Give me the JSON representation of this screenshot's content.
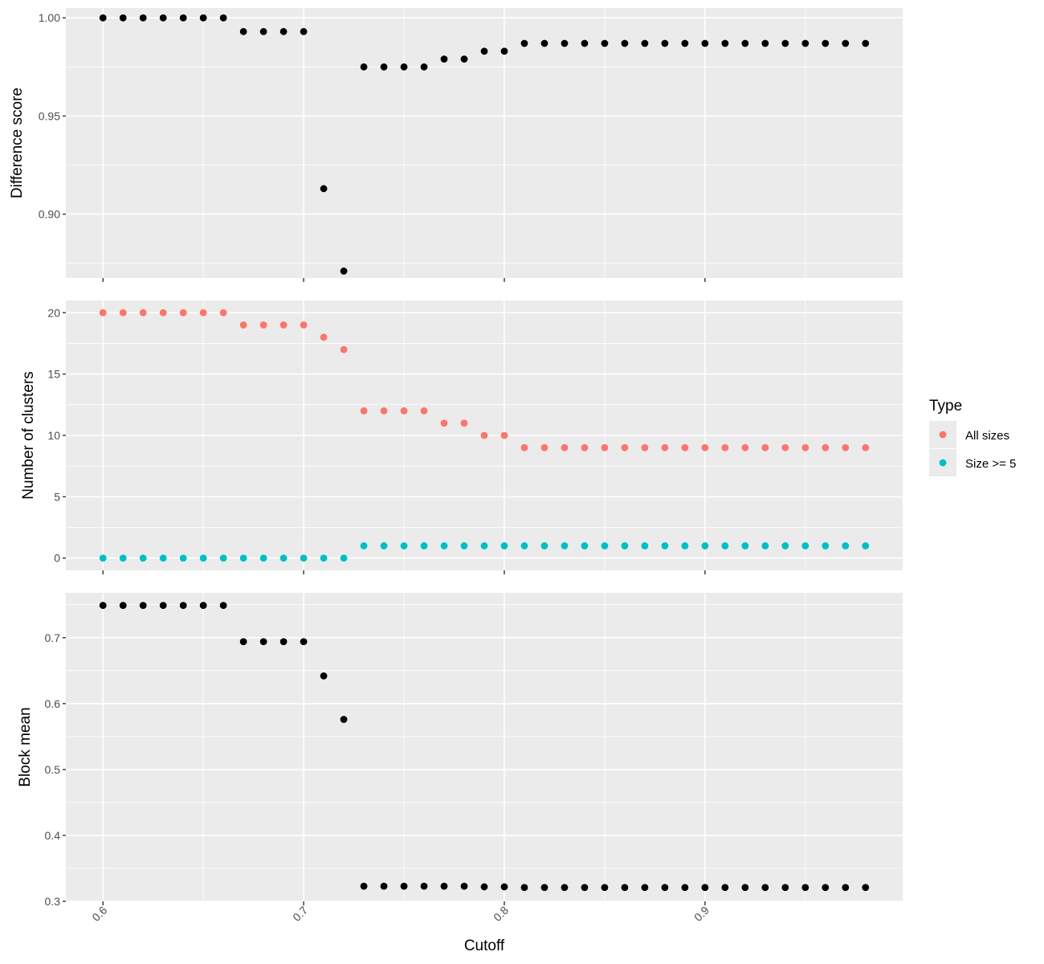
{
  "chart_data": [
    {
      "type": "scatter",
      "ylabel": "Difference score",
      "ylim": [
        0.8675,
        1.005
      ],
      "yticks": [
        0.9,
        0.95,
        1.0
      ],
      "ytick_labels": [
        "0.90",
        "0.95",
        "1.00"
      ],
      "grid": true,
      "series": [
        {
          "color": "#000000",
          "x": [
            0.6,
            0.61,
            0.62,
            0.63,
            0.64,
            0.65,
            0.66,
            0.67,
            0.68,
            0.69,
            0.7,
            0.71,
            0.72,
            0.73,
            0.74,
            0.75,
            0.76,
            0.77,
            0.78,
            0.79,
            0.8,
            0.81,
            0.82,
            0.83,
            0.84,
            0.85,
            0.86,
            0.87,
            0.88,
            0.89,
            0.9,
            0.91,
            0.92,
            0.93,
            0.94,
            0.95,
            0.96,
            0.97,
            0.98
          ],
          "y": [
            1.0,
            1.0,
            1.0,
            1.0,
            1.0,
            1.0,
            1.0,
            0.993,
            0.993,
            0.993,
            0.993,
            0.913,
            0.871,
            0.975,
            0.975,
            0.975,
            0.975,
            0.979,
            0.979,
            0.983,
            0.983,
            0.987,
            0.987,
            0.987,
            0.987,
            0.987,
            0.987,
            0.987,
            0.987,
            0.987,
            0.987,
            0.987,
            0.987,
            0.987,
            0.987,
            0.987,
            0.987,
            0.987,
            0.987
          ]
        }
      ]
    },
    {
      "type": "scatter",
      "ylabel": "Number of clusters",
      "ylim": [
        -1,
        21
      ],
      "yticks": [
        0,
        5,
        10,
        15,
        20
      ],
      "ytick_labels": [
        "0",
        "5",
        "10",
        "15",
        "20"
      ],
      "grid": true,
      "legend": {
        "title": "Type",
        "position": "right"
      },
      "series": [
        {
          "name": "All sizes",
          "color": "#f8766d",
          "x": [
            0.6,
            0.61,
            0.62,
            0.63,
            0.64,
            0.65,
            0.66,
            0.67,
            0.68,
            0.69,
            0.7,
            0.71,
            0.72,
            0.73,
            0.74,
            0.75,
            0.76,
            0.77,
            0.78,
            0.79,
            0.8,
            0.81,
            0.82,
            0.83,
            0.84,
            0.85,
            0.86,
            0.87,
            0.88,
            0.89,
            0.9,
            0.91,
            0.92,
            0.93,
            0.94,
            0.95,
            0.96,
            0.97,
            0.98
          ],
          "y": [
            20,
            20,
            20,
            20,
            20,
            20,
            20,
            19,
            19,
            19,
            19,
            18,
            17,
            12,
            12,
            12,
            12,
            11,
            11,
            10,
            10,
            9,
            9,
            9,
            9,
            9,
            9,
            9,
            9,
            9,
            9,
            9,
            9,
            9,
            9,
            9,
            9,
            9,
            9
          ]
        },
        {
          "name": "Size >= 5",
          "color": "#00bfc4",
          "x": [
            0.6,
            0.61,
            0.62,
            0.63,
            0.64,
            0.65,
            0.66,
            0.67,
            0.68,
            0.69,
            0.7,
            0.71,
            0.72,
            0.73,
            0.74,
            0.75,
            0.76,
            0.77,
            0.78,
            0.79,
            0.8,
            0.81,
            0.82,
            0.83,
            0.84,
            0.85,
            0.86,
            0.87,
            0.88,
            0.89,
            0.9,
            0.91,
            0.92,
            0.93,
            0.94,
            0.95,
            0.96,
            0.97,
            0.98
          ],
          "y": [
            0,
            0,
            0,
            0,
            0,
            0,
            0,
            0,
            0,
            0,
            0,
            0,
            0,
            1,
            1,
            1,
            1,
            1,
            1,
            1,
            1,
            1,
            1,
            1,
            1,
            1,
            1,
            1,
            1,
            1,
            1,
            1,
            1,
            1,
            1,
            1,
            1,
            1,
            1
          ]
        }
      ]
    },
    {
      "type": "scatter",
      "ylabel": "Block mean",
      "xlabel": "Cutoff",
      "ylim": [
        0.3,
        0.768
      ],
      "yticks": [
        0.3,
        0.4,
        0.5,
        0.6,
        0.7
      ],
      "ytick_labels": [
        "0.3",
        "0.4",
        "0.5",
        "0.6",
        "0.7"
      ],
      "grid": true,
      "series": [
        {
          "color": "#000000",
          "x": [
            0.6,
            0.61,
            0.62,
            0.63,
            0.64,
            0.65,
            0.66,
            0.67,
            0.68,
            0.69,
            0.7,
            0.71,
            0.72,
            0.73,
            0.74,
            0.75,
            0.76,
            0.77,
            0.78,
            0.79,
            0.8,
            0.81,
            0.82,
            0.83,
            0.84,
            0.85,
            0.86,
            0.87,
            0.88,
            0.89,
            0.9,
            0.91,
            0.92,
            0.93,
            0.94,
            0.95,
            0.96,
            0.97,
            0.98
          ],
          "y": [
            0.749,
            0.749,
            0.749,
            0.749,
            0.749,
            0.749,
            0.749,
            0.694,
            0.694,
            0.694,
            0.694,
            0.642,
            0.576,
            0.323,
            0.323,
            0.323,
            0.323,
            0.323,
            0.323,
            0.322,
            0.322,
            0.321,
            0.321,
            0.321,
            0.321,
            0.321,
            0.321,
            0.321,
            0.321,
            0.321,
            0.321,
            0.321,
            0.321,
            0.321,
            0.321,
            0.321,
            0.321,
            0.321,
            0.321
          ]
        }
      ]
    }
  ],
  "x_axis": {
    "title": "Cutoff",
    "xlim": [
      0.5815,
      0.9985
    ],
    "ticks": [
      0.6,
      0.7,
      0.8,
      0.9
    ],
    "tick_labels": [
      "0.6",
      "0.7",
      "0.8",
      "0.9"
    ]
  },
  "legend": {
    "title": "Type",
    "items": [
      {
        "label": "All sizes",
        "color": "#f8766d"
      },
      {
        "label": "Size >= 5",
        "color": "#00bfc4"
      }
    ]
  }
}
